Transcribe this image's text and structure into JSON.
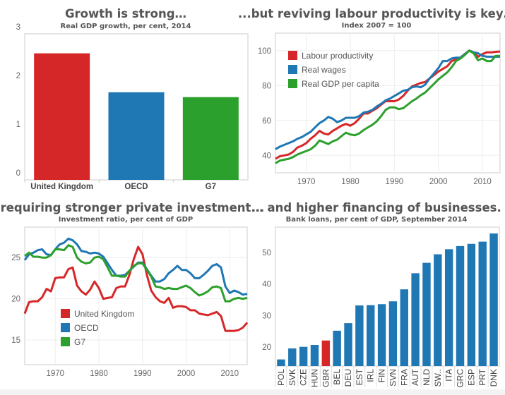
{
  "colors": {
    "red": "#d62728",
    "blue": "#1f77b4",
    "green": "#2ca02c"
  },
  "chart_data": [
    {
      "type": "bar",
      "title": "Growth is strong…",
      "subtitle": "Real GDP growth, per cent, 2014",
      "categories": [
        "United Kingdom",
        "OECD",
        "G7"
      ],
      "values": [
        2.6,
        1.8,
        1.7
      ],
      "bar_colors": [
        "#d62728",
        "#1f77b4",
        "#2ca02c"
      ],
      "ylim": [
        0,
        3
      ],
      "yticks": [
        0,
        1,
        2,
        3
      ],
      "grid": false
    },
    {
      "type": "line",
      "title": "...but reviving labour productivity is key…",
      "subtitle": "Index 2007 = 100",
      "x_start": 1963,
      "xlim": [
        1963,
        2014
      ],
      "ylim": [
        30,
        110
      ],
      "xticks": [
        1970,
        1980,
        1990,
        2000,
        2010
      ],
      "yticks": [
        40,
        60,
        80,
        100
      ],
      "grid": true,
      "legend": "top-left",
      "series": [
        {
          "name": "Labour productivity",
          "color": "#d62728",
          "values": [
            38,
            39.5,
            40,
            40.5,
            42,
            44.5,
            45.5,
            47,
            49.5,
            51.5,
            54,
            52.5,
            52,
            54,
            55.5,
            57,
            58,
            57,
            58.5,
            61,
            64,
            64,
            65.5,
            67,
            69,
            71,
            71,
            71,
            72,
            74,
            77,
            79.5,
            80.5,
            81.5,
            82,
            84,
            86,
            88,
            89.5,
            91,
            94,
            95,
            96,
            98,
            100,
            99,
            96.5,
            98,
            99,
            99,
            99.3,
            99.5
          ]
        },
        {
          "name": "Real wages",
          "color": "#1f77b4",
          "values": [
            43.5,
            45,
            46,
            47,
            48,
            49.5,
            50.5,
            52,
            53.5,
            56,
            58.5,
            60,
            62,
            61,
            59,
            60,
            61.5,
            61.5,
            61.5,
            62.5,
            64.5,
            65,
            66,
            68,
            69.5,
            71.5,
            72.5,
            74,
            75.5,
            77,
            77.5,
            79,
            79.5,
            79,
            80.5,
            84,
            87,
            90,
            94,
            94,
            95.5,
            96,
            96,
            98,
            100,
            99,
            98.5,
            97,
            96.5,
            96.5,
            96.5,
            96.5
          ]
        },
        {
          "name": "Real GDP per capita",
          "color": "#2ca02c",
          "values": [
            35.5,
            37,
            37.5,
            38,
            39,
            40.5,
            41.5,
            42.5,
            43.5,
            45.5,
            48.5,
            47.5,
            46.5,
            48,
            49,
            51,
            53,
            52,
            51.5,
            52.5,
            54.5,
            56,
            57.5,
            59.5,
            62.5,
            66,
            67.5,
            67.5,
            66.5,
            67,
            69,
            71,
            72.5,
            74.5,
            76,
            78.5,
            81,
            83.5,
            85.5,
            87.5,
            90.5,
            94,
            95.5,
            97.5,
            100,
            98.5,
            94.5,
            95.5,
            94,
            94,
            97,
            97
          ]
        }
      ]
    },
    {
      "type": "line",
      "title": "...requiring stronger private investment...",
      "subtitle": "Investment ratio, per cent of GDP",
      "x_start": 1963,
      "xlim": [
        1963,
        2014
      ],
      "ylim": [
        12,
        28.7
      ],
      "xticks": [
        1970,
        1980,
        1990,
        2000,
        2010
      ],
      "yticks": [
        15,
        20,
        25
      ],
      "grid": true,
      "legend": "bottom-left",
      "series": [
        {
          "name": "United Kingdom",
          "color": "#d62728",
          "values": [
            18.2,
            19.6,
            19.7,
            19.7,
            20.2,
            21.2,
            20.9,
            22.5,
            22.6,
            22.6,
            23.6,
            23.8,
            21.6,
            20.9,
            20.5,
            21.1,
            22.1,
            21.3,
            20.0,
            20.1,
            20.2,
            21.3,
            21.5,
            21.5,
            22.9,
            24.8,
            26.3,
            25.4,
            22.9,
            21.0,
            20.2,
            19.7,
            19.5,
            20.1,
            18.9,
            19.1,
            19.1,
            19.0,
            18.6,
            18.6,
            18.2,
            18.1,
            18.0,
            18.2,
            18.4,
            17.9,
            16.1,
            16.1,
            16.1,
            16.2,
            16.5,
            17.1
          ]
        },
        {
          "name": "OECD",
          "color": "#1f77b4",
          "values": [
            24.7,
            25.4,
            25.6,
            25.9,
            26.0,
            25.4,
            25.3,
            26.0,
            26.6,
            26.8,
            27.3,
            27.1,
            26.6,
            25.8,
            25.7,
            25.5,
            25.6,
            25.5,
            25.1,
            24.3,
            23.5,
            22.8,
            22.8,
            22.9,
            23.4,
            23.9,
            24.4,
            24.4,
            23.6,
            22.8,
            22.1,
            22.1,
            22.4,
            23.1,
            23.5,
            24.0,
            23.5,
            23.5,
            23.1,
            22.5,
            22.5,
            22.9,
            23.4,
            24.0,
            24.2,
            23.8,
            21.5,
            20.7,
            21.0,
            20.8,
            20.5,
            20.6
          ]
        },
        {
          "name": "G7",
          "color": "#2ca02c",
          "values": [
            25.2,
            25.6,
            25.1,
            25.1,
            25.0,
            25.0,
            25.3,
            26.0,
            26.0,
            25.9,
            26.5,
            26.3,
            25.0,
            24.5,
            24.3,
            24.4,
            25.0,
            25.1,
            24.8,
            23.8,
            22.8,
            22.8,
            22.7,
            22.7,
            23.4,
            24.0,
            24.3,
            24.3,
            23.5,
            22.7,
            21.5,
            21.4,
            21.2,
            21.3,
            21.2,
            21.2,
            21.4,
            21.6,
            21.3,
            20.8,
            20.4,
            20.6,
            20.9,
            21.4,
            21.5,
            21.3,
            19.7,
            19.7,
            20.0,
            20.1,
            20.0,
            20.1
          ]
        }
      ]
    },
    {
      "type": "bar",
      "title": "… and higher financing of businesses.",
      "subtitle": "Bank loans, per cent of GDP, September 2014",
      "categories": [
        "POL",
        "SVK",
        "CZE",
        "HUN",
        "GBR",
        "BEL",
        "DEU",
        "EST",
        "IRL",
        "FIN",
        "SVN",
        "FRA",
        "AUT",
        "NLD",
        "SW..",
        "ITA",
        "GRC",
        "ESP",
        "PRT",
        "DNK"
      ],
      "values": [
        16.1,
        19.6,
        20.1,
        20.7,
        22.1,
        25.2,
        27.6,
        33.2,
        33.3,
        33.6,
        34.5,
        38.3,
        43.4,
        46.7,
        49.4,
        51.0,
        52.0,
        52.7,
        53.4,
        56.0
      ],
      "highlight": "GBR",
      "highlight_color": "#d62728",
      "bar_color": "#1f77b4",
      "ylim": [
        14,
        58
      ],
      "yticks": [
        20,
        30,
        40,
        50
      ],
      "grid": false
    }
  ]
}
